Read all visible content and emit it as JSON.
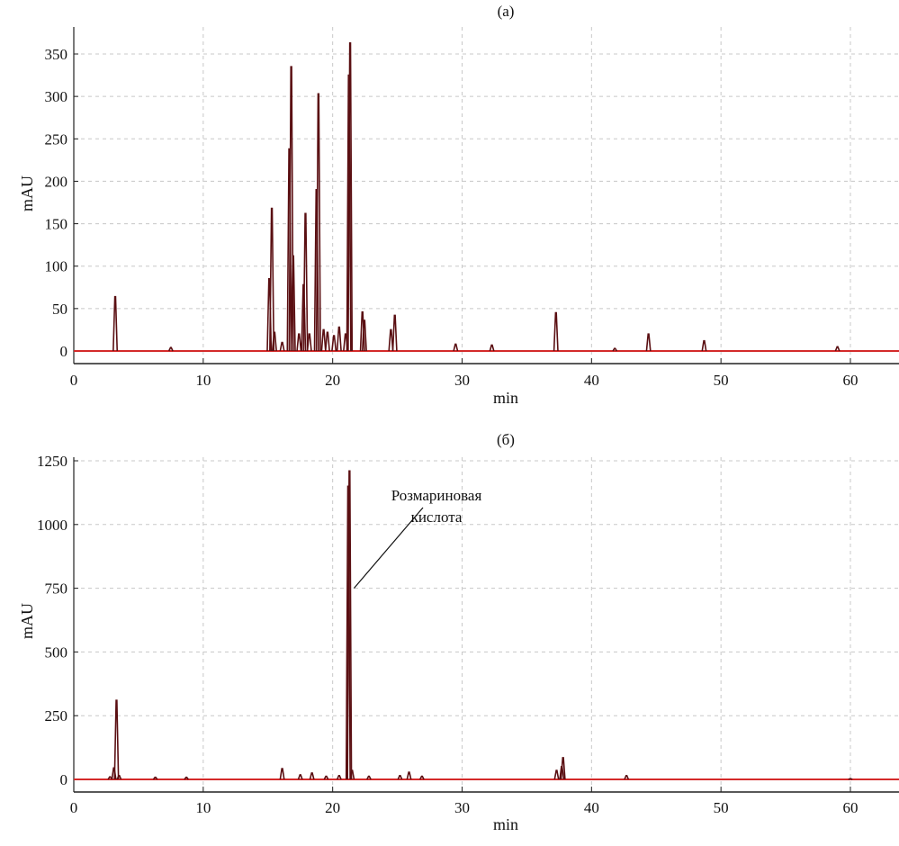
{
  "chart_data": [
    {
      "type": "line",
      "title": "(a)",
      "xlabel": "min",
      "ylabel": "mAU",
      "xlim": [
        0,
        65
      ],
      "ylim": [
        -10,
        375
      ],
      "xticks": [
        0,
        10,
        20,
        30,
        40,
        50,
        60
      ],
      "yticks": [
        0,
        50,
        100,
        150,
        200,
        250,
        300,
        350
      ],
      "grid": true,
      "colors": {
        "peak": "#5a0f12",
        "baseline": "#d42a2a",
        "grid": "#c8c8c8"
      },
      "peaks": [
        [
          3.2,
          64
        ],
        [
          7.5,
          4
        ],
        [
          15.1,
          85
        ],
        [
          15.3,
          168
        ],
        [
          15.5,
          22
        ],
        [
          16.1,
          10
        ],
        [
          16.65,
          238
        ],
        [
          16.8,
          335
        ],
        [
          16.95,
          112
        ],
        [
          17.4,
          20
        ],
        [
          17.75,
          78
        ],
        [
          17.9,
          162
        ],
        [
          18.2,
          20
        ],
        [
          18.75,
          190
        ],
        [
          18.9,
          303
        ],
        [
          19.3,
          25
        ],
        [
          19.6,
          22
        ],
        [
          20.1,
          18
        ],
        [
          20.5,
          28
        ],
        [
          21.0,
          20
        ],
        [
          21.25,
          325
        ],
        [
          21.35,
          363
        ],
        [
          22.3,
          46
        ],
        [
          22.45,
          36
        ],
        [
          24.5,
          25
        ],
        [
          24.8,
          42
        ],
        [
          29.5,
          8
        ],
        [
          32.3,
          7
        ],
        [
          37.25,
          45
        ],
        [
          41.8,
          3
        ],
        [
          44.4,
          20
        ],
        [
          48.7,
          12
        ],
        [
          59.0,
          5
        ]
      ]
    },
    {
      "type": "line",
      "title": "(б)",
      "xlabel": "min",
      "ylabel": "mAU",
      "xlim": [
        0,
        65
      ],
      "ylim": [
        -40,
        1270
      ],
      "xticks": [
        0,
        10,
        20,
        30,
        40,
        50,
        60
      ],
      "yticks": [
        0,
        250,
        500,
        750,
        1000,
        1250
      ],
      "grid": true,
      "annotation": {
        "text_line1": "Розмариновая",
        "text_line2": "кислота",
        "target": [
          21.3,
          750
        ]
      },
      "colors": {
        "peak": "#5a0f12",
        "baseline": "#d42a2a",
        "grid": "#c8c8c8"
      },
      "peaks": [
        [
          2.8,
          10
        ],
        [
          3.1,
          45
        ],
        [
          3.3,
          310
        ],
        [
          3.5,
          15
        ],
        [
          6.3,
          8
        ],
        [
          8.7,
          8
        ],
        [
          16.1,
          42
        ],
        [
          17.5,
          18
        ],
        [
          18.4,
          25
        ],
        [
          19.5,
          12
        ],
        [
          20.5,
          15
        ],
        [
          21.2,
          1150
        ],
        [
          21.3,
          1210
        ],
        [
          21.5,
          35
        ],
        [
          22.8,
          12
        ],
        [
          25.2,
          15
        ],
        [
          25.9,
          28
        ],
        [
          26.9,
          12
        ],
        [
          37.3,
          35
        ],
        [
          37.7,
          50
        ],
        [
          37.8,
          85
        ],
        [
          42.7,
          15
        ],
        [
          60.0,
          3
        ]
      ]
    }
  ]
}
